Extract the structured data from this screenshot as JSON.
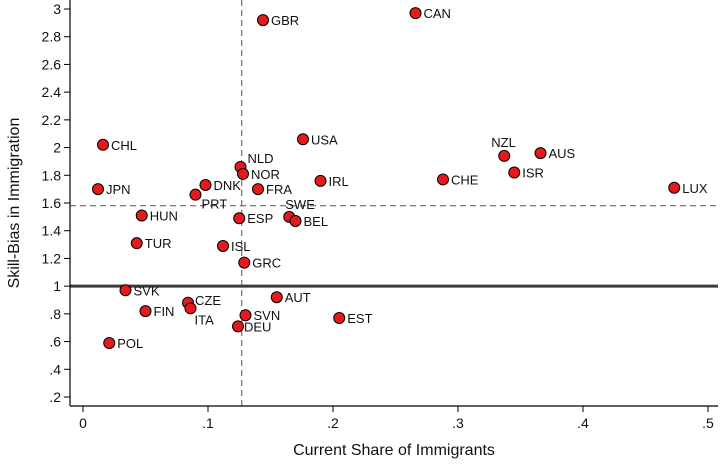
{
  "chart_data": {
    "type": "scatter",
    "title": "",
    "xlabel": "Current Share of Immigrants",
    "ylabel": "Skill-Bias in Immigration",
    "xlim": [
      0,
      0.5
    ],
    "ylim": [
      0.2,
      3.0
    ],
    "x_ticks": [
      {
        "value": 0,
        "label": "0"
      },
      {
        "value": 0.1,
        "label": ".1"
      },
      {
        "value": 0.2,
        "label": ".2"
      },
      {
        "value": 0.3,
        "label": ".3"
      },
      {
        "value": 0.4,
        "label": ".4"
      },
      {
        "value": 0.5,
        "label": ".5"
      }
    ],
    "y_ticks": [
      {
        "value": 0.2,
        "label": ".2"
      },
      {
        "value": 0.4,
        "label": ".4"
      },
      {
        "value": 0.6,
        "label": ".6"
      },
      {
        "value": 0.8,
        "label": ".8"
      },
      {
        "value": 1.0,
        "label": "1"
      },
      {
        "value": 1.2,
        "label": "1.2"
      },
      {
        "value": 1.4,
        "label": "1.4"
      },
      {
        "value": 1.6,
        "label": "1.6"
      },
      {
        "value": 1.8,
        "label": "1.8"
      },
      {
        "value": 2.0,
        "label": "2"
      },
      {
        "value": 2.2,
        "label": "2.2"
      },
      {
        "value": 2.4,
        "label": "2.4"
      },
      {
        "value": 2.6,
        "label": "2.6"
      },
      {
        "value": 2.8,
        "label": "2.8"
      },
      {
        "value": 3.0,
        "label": "3"
      }
    ],
    "grid": false,
    "reference_lines": {
      "horizontal_solid": 1.0,
      "horizontal_dashed": 1.58,
      "vertical_dashed": 0.127
    },
    "marker_color": "#e41a1c",
    "points": [
      {
        "label": "GBR",
        "x": 0.144,
        "y": 2.92
      },
      {
        "label": "CAN",
        "x": 0.266,
        "y": 2.97
      },
      {
        "label": "CHL",
        "x": 0.016,
        "y": 2.02
      },
      {
        "label": "USA",
        "x": 0.176,
        "y": 2.06
      },
      {
        "label": "NZL",
        "x": 0.337,
        "y": 1.94
      },
      {
        "label": "AUS",
        "x": 0.366,
        "y": 1.96
      },
      {
        "label": "NLD",
        "x": 0.126,
        "y": 1.86
      },
      {
        "label": "NOR",
        "x": 0.128,
        "y": 1.81
      },
      {
        "label": "ISR",
        "x": 0.345,
        "y": 1.82
      },
      {
        "label": "JPN",
        "x": 0.012,
        "y": 1.7
      },
      {
        "label": "DNK",
        "x": 0.098,
        "y": 1.73
      },
      {
        "label": "FRA",
        "x": 0.14,
        "y": 1.7
      },
      {
        "label": "IRL",
        "x": 0.19,
        "y": 1.76
      },
      {
        "label": "CHE",
        "x": 0.288,
        "y": 1.77
      },
      {
        "label": "LUX",
        "x": 0.473,
        "y": 1.71
      },
      {
        "label": "PRT",
        "x": 0.09,
        "y": 1.66
      },
      {
        "label": "SWE",
        "x": 0.165,
        "y": 1.5
      },
      {
        "label": "HUN",
        "x": 0.047,
        "y": 1.51
      },
      {
        "label": "ESP",
        "x": 0.125,
        "y": 1.49
      },
      {
        "label": "BEL",
        "x": 0.17,
        "y": 1.47
      },
      {
        "label": "TUR",
        "x": 0.043,
        "y": 1.31
      },
      {
        "label": "ISL",
        "x": 0.112,
        "y": 1.29
      },
      {
        "label": "GRC",
        "x": 0.129,
        "y": 1.17
      },
      {
        "label": "SVK",
        "x": 0.034,
        "y": 0.97
      },
      {
        "label": "AUT",
        "x": 0.155,
        "y": 0.92
      },
      {
        "label": "CZE",
        "x": 0.084,
        "y": 0.88
      },
      {
        "label": "ITA",
        "x": 0.086,
        "y": 0.84
      },
      {
        "label": "FIN",
        "x": 0.05,
        "y": 0.82
      },
      {
        "label": "SVN",
        "x": 0.13,
        "y": 0.79
      },
      {
        "label": "EST",
        "x": 0.205,
        "y": 0.77
      },
      {
        "label": "DEU",
        "x": 0.124,
        "y": 0.71
      },
      {
        "label": "POL",
        "x": 0.021,
        "y": 0.59
      }
    ]
  }
}
